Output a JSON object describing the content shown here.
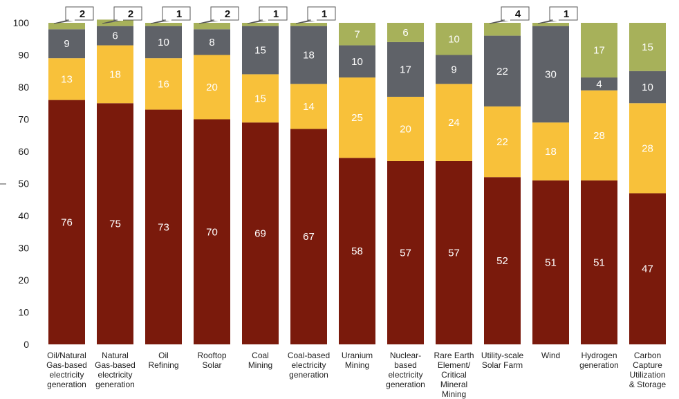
{
  "chart_data": {
    "type": "bar",
    "stacked": true,
    "categories": [
      "Oil/Natural Gas-based electricity generation",
      "Natural Gas-based electricity generation",
      "Oil Refining",
      "Rooftop Solar",
      "Coal Mining",
      "Coal-based electricity generation",
      "Uranium Mining",
      "Nuclear-based electricity generation",
      "Rare Earth Element/ Critical Mineral Mining",
      "Utility-scale Solar Farm",
      "Wind",
      "Hydrogen generation",
      "Carbon Capture Utilization & Storage"
    ],
    "category_lines": [
      [
        "Oil/Natural",
        "Gas-based",
        "electricity",
        "generation"
      ],
      [
        "Natural",
        "Gas-based",
        "electricity",
        "generation"
      ],
      [
        "Oil",
        "Refining"
      ],
      [
        "Rooftop",
        "Solar"
      ],
      [
        "Coal",
        "Mining"
      ],
      [
        "Coal-based",
        "electricity",
        "generation"
      ],
      [
        "Uranium",
        "Mining"
      ],
      [
        "Nuclear-",
        "based",
        "electricity",
        "generation"
      ],
      [
        "Rare Earth",
        "Element/",
        "Critical",
        "Mineral",
        "Mining"
      ],
      [
        "Utility-scale",
        "Solar Farm"
      ],
      [
        "Wind"
      ],
      [
        "Hydrogen",
        "generation"
      ],
      [
        "Carbon",
        "Capture",
        "Utilization",
        "& Storage"
      ]
    ],
    "series": [
      {
        "color": "#7a1a0c",
        "values": [
          76,
          75,
          73,
          70,
          69,
          67,
          58,
          57,
          57,
          52,
          51,
          51,
          47
        ]
      },
      {
        "color": "#f8c13a",
        "values": [
          13,
          18,
          16,
          20,
          15,
          14,
          25,
          20,
          24,
          22,
          18,
          28,
          28
        ]
      },
      {
        "color": "#5f6268",
        "values": [
          9,
          6,
          10,
          8,
          15,
          18,
          10,
          17,
          9,
          22,
          30,
          4,
          10
        ]
      },
      {
        "color": "#a7b15a",
        "values": [
          2,
          2,
          1,
          2,
          1,
          1,
          7,
          6,
          10,
          4,
          1,
          17,
          15
        ]
      }
    ],
    "callout_series_index": 3,
    "callout_threshold": 5,
    "ylim": [
      0,
      100
    ],
    "yticks": [
      0,
      10,
      20,
      30,
      40,
      50,
      60,
      70,
      80,
      90,
      100
    ],
    "grid": false,
    "title": "",
    "xlabel": "",
    "ylabel": ""
  }
}
